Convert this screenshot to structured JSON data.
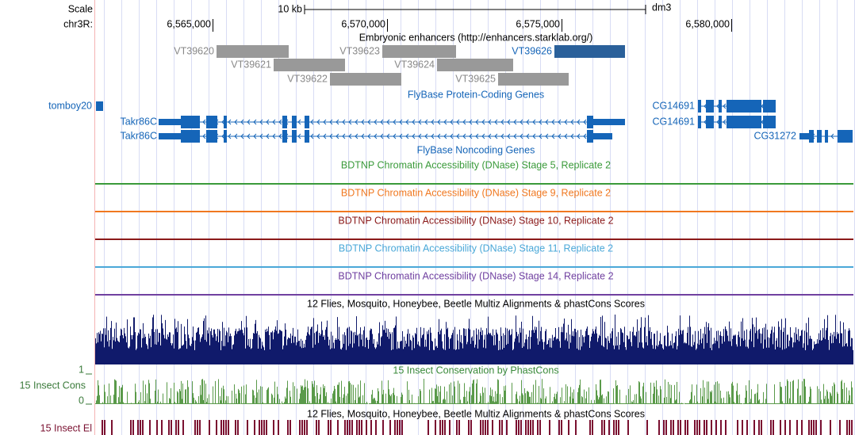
{
  "ruler": {
    "scale_label": "Scale",
    "chrom_label": "chr3R:",
    "scale_bar": "10 kb",
    "assembly": "dm3",
    "positions": [
      "6,565,000",
      "6,570,000",
      "6,575,000",
      "6,580,000"
    ]
  },
  "enhancer_track": {
    "title": "Embryonic enhancers (http://enhancers.starklab.org/)",
    "features": [
      "VT39620",
      "VT39621",
      "VT39622",
      "VT39623",
      "VT39624",
      "VT39625",
      "VT39626"
    ]
  },
  "gene_track": {
    "title": "FlyBase Protein-Coding Genes",
    "genes": [
      "tomboy20",
      "Takr86C",
      "Takr86C",
      "CG14691",
      "CG14691",
      "CG31272"
    ]
  },
  "noncoding_track": {
    "title": "FlyBase Noncoding Genes"
  },
  "dnase_tracks": [
    "BDTNP Chromatin Accessibility (DNase) Stage 5, Replicate 2",
    "BDTNP Chromatin Accessibility (DNase) Stage 9, Replicate 2",
    "BDTNP Chromatin Accessibility (DNase) Stage 10, Replicate 2",
    "BDTNP Chromatin Accessibility (DNase) Stage 11, Replicate 2",
    "BDTNP Chromatin Accessibility (DNase) Stage 14, Replicate 2"
  ],
  "multiz_track": {
    "title": "12 Flies, Mosquito, Honeybee, Beetle Multiz Alignments & phastCons Scores"
  },
  "cons_track": {
    "title": "15 Insect Conservation by PhastCons",
    "side_label": "15 Insect Cons",
    "max": "1",
    "min": "0"
  },
  "elements_track": {
    "title": "12 Flies, Mosquito, Honeybee, Beetle Multiz Alignments & phastCons Scores",
    "side_label": "15 Insect El"
  }
}
